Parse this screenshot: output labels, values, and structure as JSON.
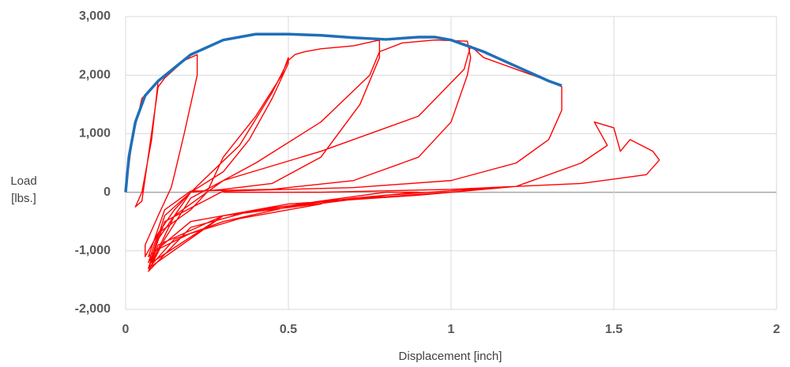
{
  "chart_data": {
    "type": "line",
    "xlabel": "Displacement [inch]",
    "ylabel": [
      "Load",
      "[lbs.]"
    ],
    "xlim": [
      0,
      2
    ],
    "xticks": [
      0,
      0.5,
      1,
      1.5,
      2
    ],
    "ylim": [
      -2000,
      3000
    ],
    "yticks": [
      {
        "value": -2000,
        "label": "-2,000"
      },
      {
        "value": -1000,
        "label": "-1,000"
      },
      0,
      {
        "value": 1000,
        "label": "1,000"
      },
      {
        "value": 2000,
        "label": "2,000"
      },
      {
        "value": 3000,
        "label": "3,000"
      }
    ],
    "grid": true,
    "series": [
      {
        "color": "#ff0000",
        "x": [
          0,
          0.02,
          0.05,
          0.09,
          0.1,
          0.08,
          0.05,
          0.03,
          0.05,
          0.1,
          0.12,
          0.18,
          0.22,
          0.22,
          0.18,
          0.15,
          0.14,
          0.1,
          0.06,
          0.06,
          0.1,
          0.2,
          0.25,
          0.3,
          0.4,
          0.48,
          0.5,
          0.5,
          0.45,
          0.38,
          0.3,
          0.2,
          0.15,
          0.1,
          0.07,
          0.09,
          0.2,
          0.35,
          0.5,
          0.6,
          0.62,
          0.5,
          0.3,
          0.15,
          0.07,
          0.1,
          0.2,
          0.35,
          0.45,
          0.5,
          0.52,
          0.55,
          0.6,
          0.7,
          0.78,
          0.78,
          0.72,
          0.6,
          0.45,
          0.3,
          0.2,
          0.12,
          0.07,
          0.1,
          0.3,
          0.6,
          0.8,
          0.9,
          0.7,
          0.4,
          0.2,
          0.07,
          0.12,
          0.2,
          0.4,
          0.6,
          0.75,
          0.78,
          0.85,
          0.95,
          1.05,
          1.06,
          1.05,
          1.0,
          0.9,
          0.7,
          0.45,
          0.2,
          0.12,
          0.07,
          0.2,
          0.5,
          0.9,
          1.1,
          1.2,
          1.0,
          0.6,
          0.3,
          0.08,
          0.15,
          0.3,
          0.6,
          0.9,
          1.04,
          1.06,
          1.1,
          1.2,
          1.3,
          1.34,
          1.34,
          1.3,
          1.2,
          1.0,
          0.7,
          0.3,
          0.12,
          0.07,
          0.3,
          0.8,
          1.2,
          1.4,
          1.48,
          1.44,
          1.5,
          1.52,
          1.55,
          1.62,
          1.64,
          1.6,
          1.4,
          1.2,
          1.0,
          0.6,
          0.3
        ],
        "values": [
          0,
          900,
          1600,
          1850,
          1900,
          900,
          0,
          -250,
          -150,
          1800,
          1950,
          2250,
          2350,
          2000,
          1000,
          300,
          80,
          -400,
          -900,
          -1100,
          -700,
          -300,
          0,
          600,
          1300,
          2000,
          2300,
          2200,
          1600,
          900,
          350,
          0,
          -300,
          -700,
          -1200,
          -1000,
          -700,
          -450,
          -300,
          -200,
          -150,
          -250,
          -500,
          -800,
          -1300,
          -800,
          0,
          800,
          1700,
          2250,
          2350,
          2400,
          2450,
          2500,
          2600,
          2300,
          1500,
          600,
          150,
          50,
          0,
          -400,
          -1300,
          -900,
          -400,
          -150,
          0,
          0,
          -100,
          -300,
          -600,
          -1350,
          -800,
          -100,
          500,
          1200,
          2000,
          2400,
          2550,
          2600,
          2580,
          2300,
          2000,
          1200,
          600,
          200,
          50,
          20,
          -300,
          -1100,
          -500,
          -200,
          -50,
          50,
          100,
          0,
          -150,
          -400,
          -1200,
          -400,
          200,
          700,
          1300,
          2100,
          2500,
          2300,
          2100,
          1900,
          1800,
          1400,
          900,
          500,
          200,
          80,
          20,
          -500,
          -1300,
          -400,
          -50,
          100,
          500,
          800,
          1200,
          1100,
          700,
          900,
          700,
          550,
          300,
          150,
          100,
          50,
          0,
          0
        ]
      },
      {
        "color": "#1f6fb8",
        "x": [
          0,
          0.01,
          0.03,
          0.06,
          0.1,
          0.2,
          0.3,
          0.4,
          0.5,
          0.6,
          0.7,
          0.8,
          0.9,
          0.95,
          1.0,
          1.1,
          1.2,
          1.3,
          1.34
        ],
        "values": [
          0,
          600,
          1200,
          1650,
          1900,
          2350,
          2600,
          2700,
          2700,
          2680,
          2640,
          2610,
          2650,
          2650,
          2600,
          2400,
          2150,
          1900,
          1820
        ]
      }
    ]
  }
}
